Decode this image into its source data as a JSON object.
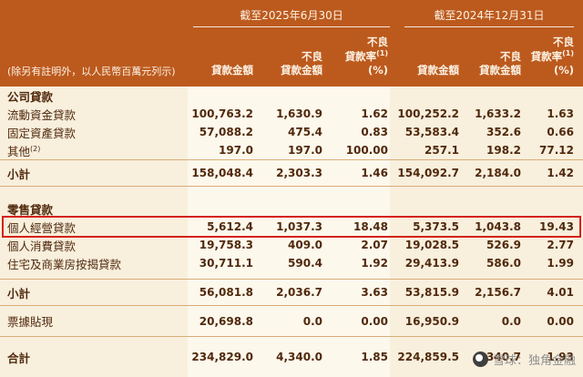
{
  "colors": {
    "header_bg": "#bc5a1e",
    "body_bg": "#f8efdd",
    "band_bg": "#fdf8ec",
    "text": "#50290d",
    "line": "#d9ac79",
    "highlight": "#d42315",
    "watermark": "#8f8f8f",
    "header_text": "#fdf2e4"
  },
  "header": {
    "period_2025": "截至2025年6月30日",
    "period_2024": "截至2024年12月31日",
    "note": "(除另有註明外，以人民幣百萬元列示)",
    "col_loan_amount": "貸款金額",
    "col_npl_line1": "不良",
    "col_npl_line2": "貸款金額",
    "col_ratio_line1": "不良",
    "col_ratio_line2": "貸款率",
    "col_ratio_sup": "(1)",
    "col_ratio_line3": "(%)"
  },
  "table": {
    "rows": [
      {
        "type": "section",
        "label": "公司貸款"
      },
      {
        "type": "data",
        "label": "流動資金貸款",
        "cells": [
          "100,763.2",
          "1,630.9",
          "1.62",
          "100,252.2",
          "1,633.2",
          "1.63"
        ]
      },
      {
        "type": "data",
        "label": "固定資產貸款",
        "cells": [
          "57,088.2",
          "475.4",
          "0.83",
          "53,583.4",
          "352.6",
          "0.66"
        ]
      },
      {
        "type": "data",
        "label": "其他",
        "sup": "(2)",
        "cells": [
          "197.0",
          "197.0",
          "100.00",
          "257.1",
          "198.2",
          "77.12"
        ]
      },
      {
        "type": "subtotal",
        "label": "小計",
        "cells": [
          "158,048.4",
          "2,303.3",
          "1.46",
          "154,092.7",
          "2,184.0",
          "1.42"
        ]
      },
      {
        "type": "section",
        "label": "零售貸款"
      },
      {
        "type": "data",
        "label": "個人經營貸款",
        "highlighted": true,
        "cells": [
          "5,612.4",
          "1,037.3",
          "18.48",
          "5,373.5",
          "1,043.8",
          "19.43"
        ]
      },
      {
        "type": "data",
        "label": "個人消費貸款",
        "cells": [
          "19,758.3",
          "409.0",
          "2.07",
          "19,028.5",
          "526.9",
          "2.77"
        ]
      },
      {
        "type": "data",
        "label": "住宅及商業房按揭貸款",
        "cells": [
          "30,711.1",
          "590.4",
          "1.92",
          "29,413.9",
          "586.0",
          "1.99"
        ]
      },
      {
        "type": "subtotal",
        "label": "小計",
        "cells": [
          "56,081.8",
          "2,036.7",
          "3.63",
          "53,815.9",
          "2,156.7",
          "4.01"
        ]
      },
      {
        "type": "data",
        "label": "票據貼現",
        "cells": [
          "20,698.8",
          "0.0",
          "0.00",
          "16,950.9",
          "0.0",
          "0.00"
        ]
      },
      {
        "type": "total",
        "label": "合計",
        "cells": [
          "234,829.0",
          "4,340.0",
          "1.85",
          "224,859.5",
          "4,340.7",
          "1.93"
        ]
      }
    ]
  },
  "watermark": {
    "text": "雪球：独角金融"
  }
}
